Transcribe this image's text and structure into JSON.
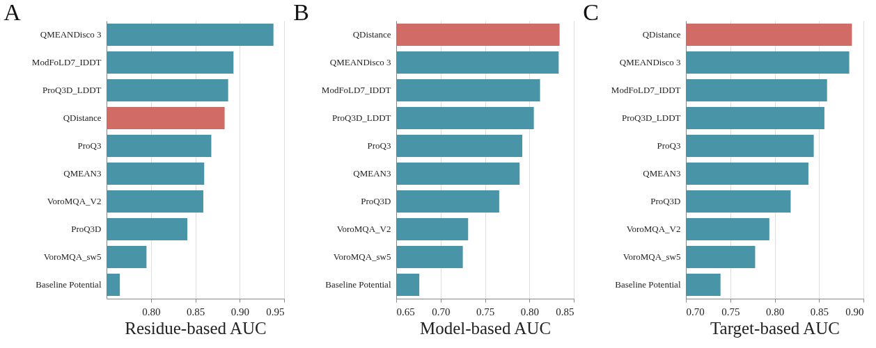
{
  "chart_data": [
    {
      "type": "bar",
      "orientation": "horizontal",
      "title": "A",
      "xlabel": "Residue-based AUC",
      "categories": [
        "QMEANDisco 3",
        "ModFoLD7_IDDT",
        "ProQ3D_LDDT",
        "QDistance",
        "ProQ3",
        "QMEAN3",
        "VoroMQA_V2",
        "ProQ3D",
        "VoroMQA_sw5",
        "Baseline Potential"
      ],
      "values": [
        0.938,
        0.893,
        0.887,
        0.883,
        0.868,
        0.86,
        0.859,
        0.841,
        0.795,
        0.765
      ],
      "colors": [
        "#4a94a8",
        "#4a94a8",
        "#4a94a8",
        "#d06b66",
        "#4a94a8",
        "#4a94a8",
        "#4a94a8",
        "#4a94a8",
        "#4a94a8",
        "#4a94a8"
      ],
      "xlim": [
        0.75,
        0.95
      ],
      "xticks": [
        {
          "value": 0.8,
          "label": "0.80"
        },
        0.85,
        {
          "value": 0.9,
          "label": "0.90"
        },
        0.95
      ],
      "grid": "x"
    },
    {
      "type": "bar",
      "orientation": "horizontal",
      "title": "B",
      "xlabel": "Model-based AUC",
      "categories": [
        "QDistance",
        "QMEANDisco 3",
        "ModFoLD7_IDDT",
        "ProQ3D_LDDT",
        "ProQ3",
        "QMEAN3",
        "ProQ3D",
        "VoroMQA_V2",
        "VoroMQA_sw5",
        "Baseline Potential"
      ],
      "values": [
        0.834,
        0.833,
        0.812,
        0.805,
        0.792,
        0.789,
        0.766,
        0.731,
        0.725,
        0.676
      ],
      "colors": [
        "#d06b66",
        "#4a94a8",
        "#4a94a8",
        "#4a94a8",
        "#4a94a8",
        "#4a94a8",
        "#4a94a8",
        "#4a94a8",
        "#4a94a8",
        "#4a94a8"
      ],
      "xlim": [
        0.65,
        0.85
      ],
      "xticks": [
        0.65,
        {
          "value": 0.7,
          "label": "0.70"
        },
        0.75,
        {
          "value": 0.8,
          "label": "0.80"
        },
        0.85
      ],
      "grid": "x"
    },
    {
      "type": "bar",
      "orientation": "horizontal",
      "title": "C",
      "xlabel": "Target-based AUC",
      "categories": [
        "QDistance",
        "QMEANDisco 3",
        "ModFoLD7_IDDT",
        "ProQ3D_LDDT",
        "ProQ3",
        "QMEAN3",
        "ProQ3D",
        "VoroMQA_V2",
        "VoroMQA_sw5",
        "Baseline Potential"
      ],
      "values": [
        0.887,
        0.884,
        0.859,
        0.856,
        0.844,
        0.838,
        0.818,
        0.794,
        0.778,
        0.739
      ],
      "colors": [
        "#d06b66",
        "#4a94a8",
        "#4a94a8",
        "#4a94a8",
        "#4a94a8",
        "#4a94a8",
        "#4a94a8",
        "#4a94a8",
        "#4a94a8",
        "#4a94a8"
      ],
      "xlim": [
        0.7,
        0.9
      ],
      "xticks": [
        {
          "value": 0.7,
          "label": "0.70"
        },
        0.75,
        {
          "value": 0.8,
          "label": "0.80"
        },
        0.85,
        {
          "value": 0.9,
          "label": "0.90"
        }
      ],
      "grid": "x"
    }
  ]
}
